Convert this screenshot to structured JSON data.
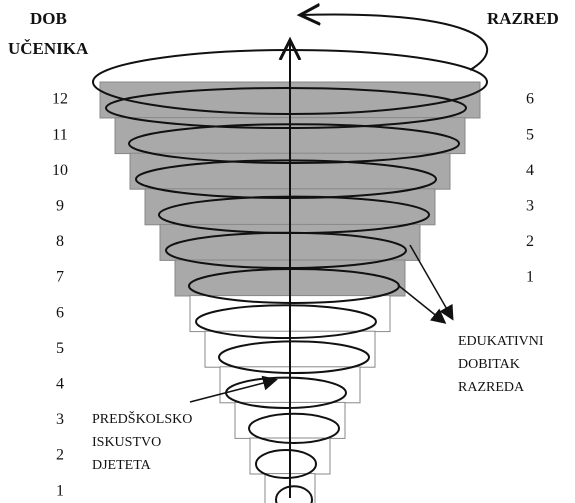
{
  "left_header": [
    "DOB",
    "UČENIKA"
  ],
  "right_header": "RAZRED",
  "ages": [
    "12",
    "11",
    "10",
    "9",
    "8",
    "7",
    "6",
    "5",
    "4",
    "3",
    "2",
    "1"
  ],
  "grades": [
    "6",
    "5",
    "4",
    "3",
    "2",
    "1"
  ],
  "gain_label": [
    "EDUKATIVNI",
    "DOBITAK",
    "RAZREDA"
  ],
  "preschool_label": [
    "PREDŠKOLSKO",
    "ISKUSTVO",
    "DJETETA"
  ]
}
